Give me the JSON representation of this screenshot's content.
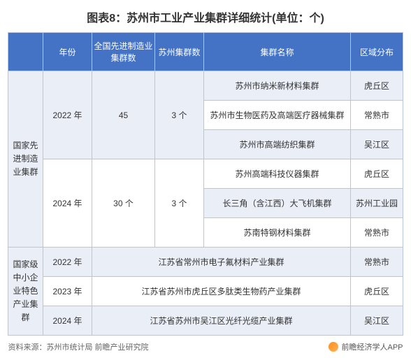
{
  "title": "图表8：苏州市工业产业集群详细统计(单位：个)",
  "headers": {
    "category": "",
    "year": "年份",
    "national_count": "全国先进制造业集群数",
    "suzhou_count": "苏州集群数",
    "cluster_name": "集群名称",
    "region": "区域分布"
  },
  "section1": {
    "category": "国家先进制造业集群",
    "group1": {
      "year": "2022 年",
      "national": "45",
      "suzhou": "3 个",
      "rows": [
        {
          "name": "苏州市纳米新材料集群",
          "region": "虎丘区"
        },
        {
          "name": "苏州市生物医药及高端医疗器械集群",
          "region": "常熟市"
        },
        {
          "name": "苏州市高端纺织集群",
          "region": "吴江区"
        }
      ]
    },
    "group2": {
      "year": "2024 年",
      "national": "30 个",
      "suzhou": "3 个",
      "rows": [
        {
          "name": "苏州高端科技仪器集群",
          "region": "虎丘区"
        },
        {
          "name": "长三角（含江西）大飞机集群",
          "region": "苏州工业园"
        },
        {
          "name": "苏南特钢材料集群",
          "region": "常熟市"
        }
      ]
    }
  },
  "section2": {
    "category": "国家级中小企业特色产业集群",
    "rows": [
      {
        "year": "2022 年",
        "name": "江苏省常州市电子氟材料产业集群",
        "region": "常熟市"
      },
      {
        "year": "2023 年",
        "name": "江苏省苏州市虎丘区多肽类生物药产业集群",
        "region": "虎丘区"
      },
      {
        "year": "2024 年",
        "name": "江苏省苏州市吴江区光纤光缆产业集群",
        "region": "吴江区"
      }
    ]
  },
  "source": "资料来源：苏州市统计局 前瞻产业研究院",
  "brand": "前瞻经济学人APP",
  "colors": {
    "header_bg": "#4472c4",
    "header_text": "#ffffff",
    "row_odd": "#eaeef7",
    "row_even": "#ffffff",
    "border": "#b8c5e0"
  }
}
